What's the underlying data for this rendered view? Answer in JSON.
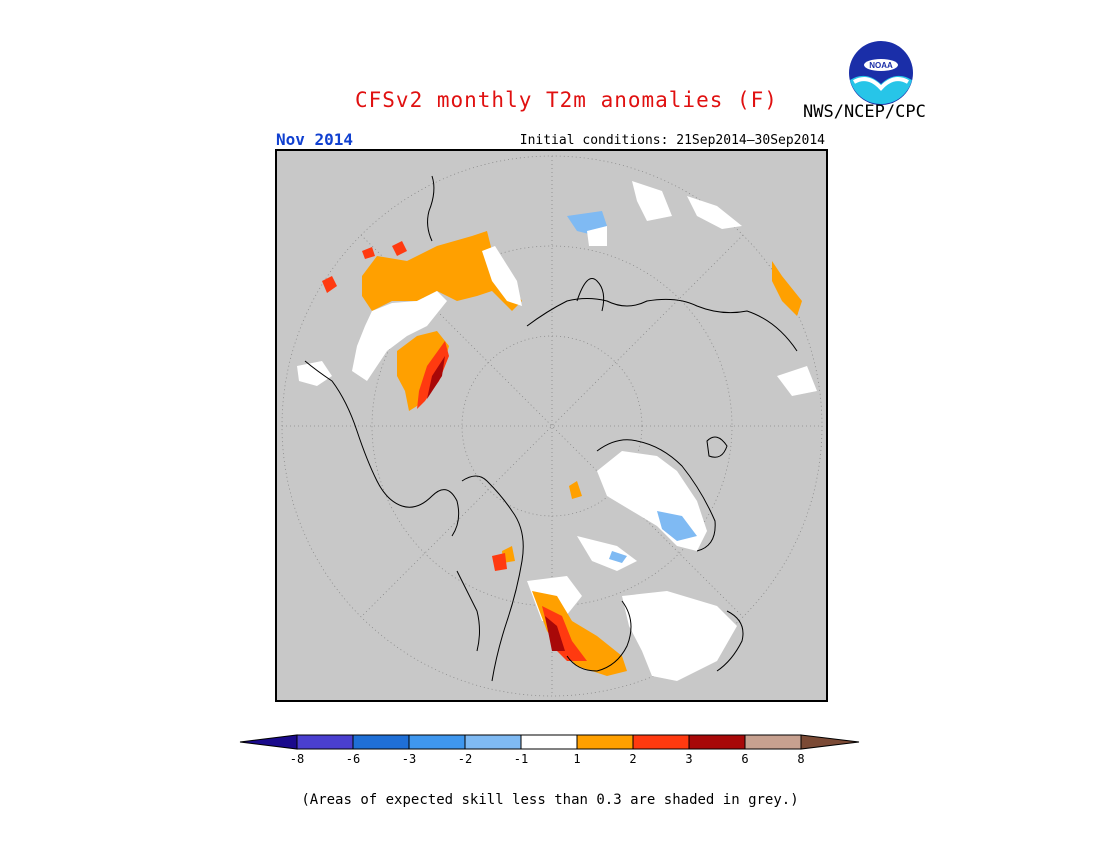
{
  "header": {
    "title": "CFSv2 monthly T2m anomalies (F)",
    "agency": "NWS/NCEP/CPC",
    "logo_text": "NOAA",
    "month": "Nov 2014",
    "initial_conditions": "Initial conditions: 21Sep2014—30Sep2014"
  },
  "colors": {
    "title": "#e01010",
    "month": "#1040d0",
    "background_grey": "#c8c8c8",
    "gridline": "#888888",
    "coast": "#000000"
  },
  "legend": {
    "tick_labels": [
      "-8",
      "-6",
      "-3",
      "-2",
      "-1",
      "1",
      "2",
      "3",
      "6",
      "8"
    ],
    "bins": [
      {
        "color": "#1a0a8c"
      },
      {
        "color": "#4a3fcf"
      },
      {
        "color": "#1f6fd6"
      },
      {
        "color": "#3f97ee"
      },
      {
        "color": "#7fbaf3"
      },
      {
        "color": "#ffffff"
      },
      {
        "color": "#ffa000"
      },
      {
        "color": "#ff3a10"
      },
      {
        "color": "#a80808"
      },
      {
        "color": "#c7a190"
      },
      {
        "color": "#7b4a35"
      }
    ]
  },
  "footer": {
    "note": "(Areas of expected skill less than 0.3 are shaded in grey.)"
  },
  "map": {
    "projection": "north-polar-stereographic",
    "regions": [
      {
        "name": "europe-warm-band",
        "anomaly_class": "1 to 2"
      },
      {
        "name": "scandinavia-white",
        "anomaly_class": "-1 to 1"
      },
      {
        "name": "west-africa-coast-warm",
        "anomaly_class": "2 to 6"
      },
      {
        "name": "greenland-white",
        "anomaly_class": "-1 to 1"
      },
      {
        "name": "greenland-cold-patch",
        "anomaly_class": "-2 to -1"
      },
      {
        "name": "north-america-warm",
        "anomaly_class": "2 to 6"
      },
      {
        "name": "hudson-bay-white",
        "anomaly_class": "-1 to 1"
      },
      {
        "name": "siberia-cold-patch",
        "anomaly_class": "-2 to -1"
      },
      {
        "name": "siberia-white",
        "anomaly_class": "-1 to 1"
      },
      {
        "name": "alaska-warm",
        "anomaly_class": "1 to 2"
      }
    ]
  }
}
